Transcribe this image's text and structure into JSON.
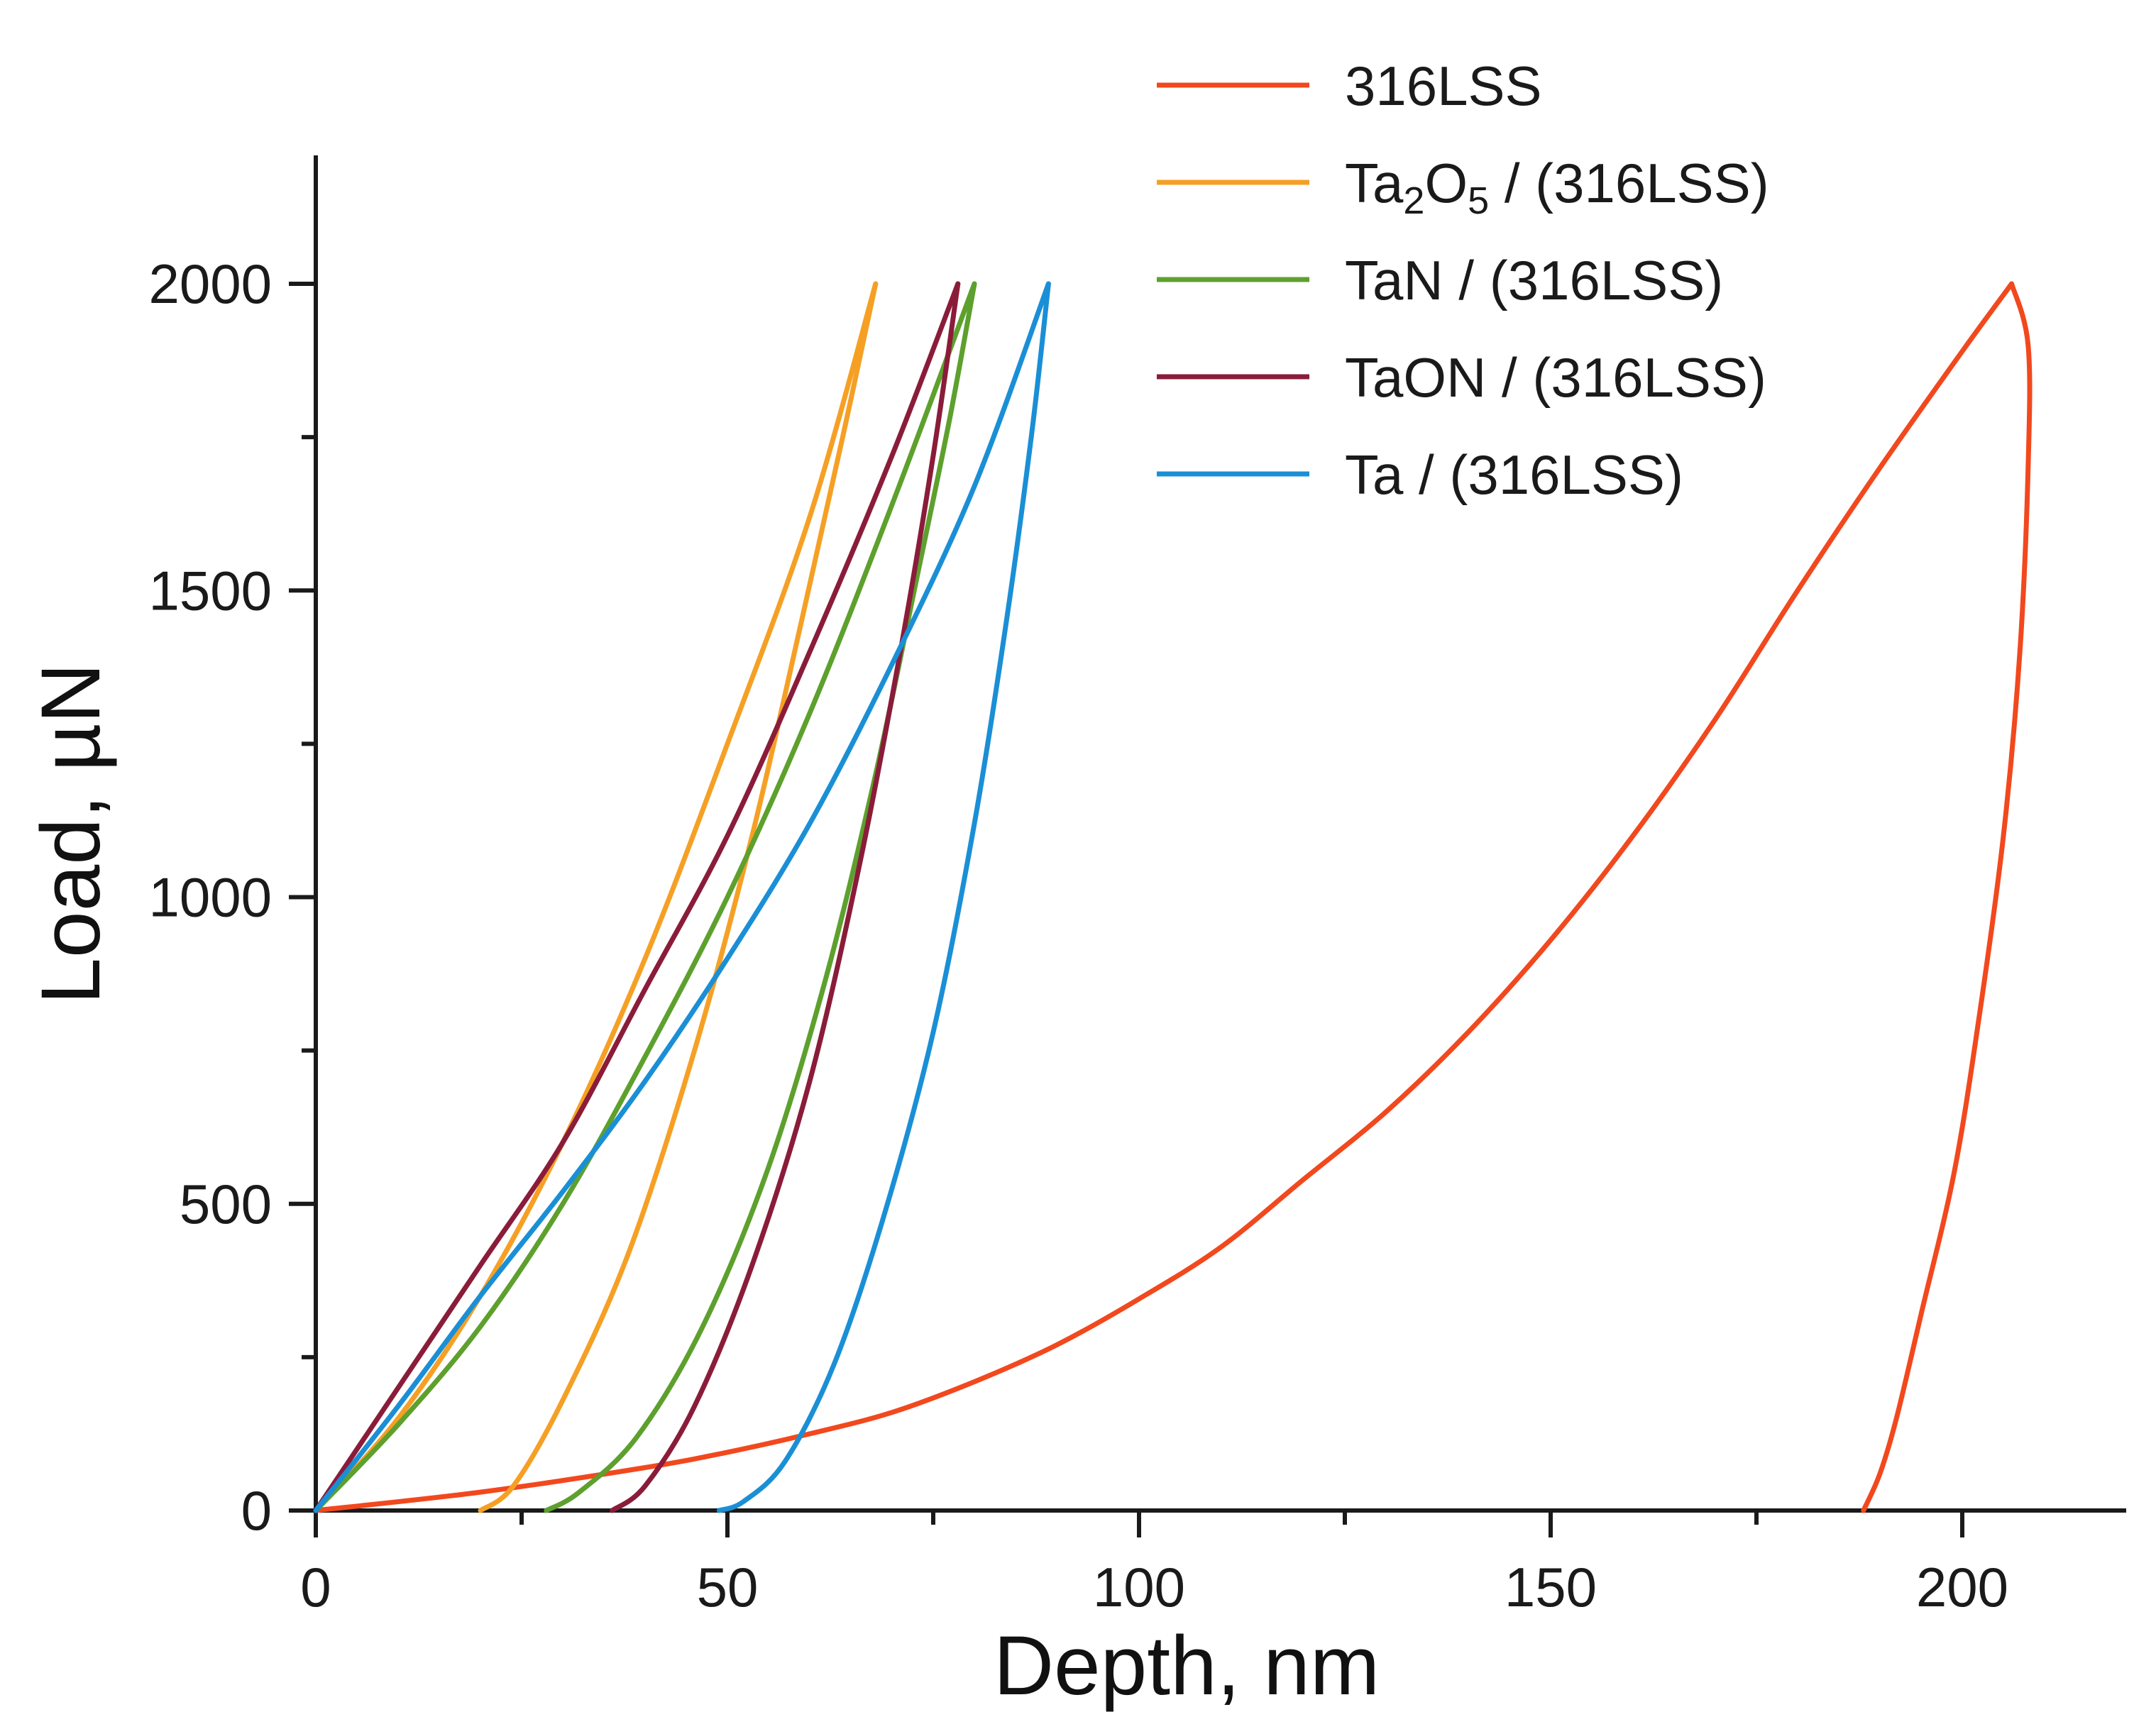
{
  "chart_data": {
    "type": "line",
    "title": "",
    "xlabel": "Depth, nm",
    "ylabel": "Load, µN",
    "xlim": [
      0,
      220
    ],
    "ylim": [
      0,
      2200
    ],
    "x_ticks": [
      0,
      50,
      100,
      150,
      200
    ],
    "x_tick_labels": [
      "0",
      "50",
      "100",
      "150",
      "200"
    ],
    "x_minor_ticks": [
      25,
      75,
      125,
      175
    ],
    "y_ticks": [
      0,
      500,
      1000,
      1500,
      2000
    ],
    "y_tick_labels": [
      "0",
      "500",
      "1000",
      "1500",
      "2000"
    ],
    "y_minor_ticks": [
      250,
      750,
      1250,
      1750
    ],
    "grid": false,
    "legend_position": "top-right",
    "series": [
      {
        "name": "316LSS",
        "legend_main": "316LSS",
        "legend_rest": "",
        "color": "#f2481e",
        "loading": {
          "x": [
            0,
            20,
            40,
            50,
            60,
            70,
            80,
            90,
            100,
            110,
            120,
            130,
            140,
            150,
            160,
            170,
            180,
            190,
            200,
            206
          ],
          "y": [
            0,
            30,
            70,
            95,
            125,
            160,
            210,
            270,
            345,
            430,
            540,
            650,
            780,
            930,
            1100,
            1290,
            1500,
            1700,
            1890,
            2000
          ]
        },
        "unloading": {
          "x": [
            206,
            208,
            208,
            207,
            205,
            202,
            199,
            195,
            192,
            190,
            188
          ],
          "y": [
            2000,
            1900,
            1700,
            1400,
            1100,
            800,
            550,
            320,
            150,
            60,
            0
          ]
        }
      },
      {
        "name": "Ta2O5 / (316LSS)",
        "legend_main": "Ta",
        "legend_sub1": "2",
        "legend_mid": "O",
        "legend_sub2": "5",
        "legend_rest": " / (316LSS)",
        "color": "#f5a025",
        "loading": {
          "x": [
            0,
            10,
            20,
            30,
            40,
            50,
            60,
            68
          ],
          "y": [
            0,
            150,
            350,
            600,
            900,
            1250,
            1620,
            2000
          ]
        },
        "unloading": {
          "x": [
            68,
            64,
            59,
            53,
            46,
            38,
            30,
            24,
            20
          ],
          "y": [
            2000,
            1750,
            1450,
            1100,
            750,
            420,
            180,
            40,
            0
          ]
        }
      },
      {
        "name": "TaN / (316LSS)",
        "legend_main": "TaN / (316LSS)",
        "legend_rest": "",
        "color": "#5da02d",
        "loading": {
          "x": [
            0,
            10,
            20,
            30,
            40,
            50,
            60,
            70,
            80
          ],
          "y": [
            0,
            140,
            300,
            500,
            740,
            1000,
            1300,
            1640,
            2000
          ]
        },
        "unloading": {
          "x": [
            80,
            77,
            73,
            68,
            62,
            55,
            47,
            39,
            32,
            28
          ],
          "y": [
            2000,
            1780,
            1520,
            1200,
            870,
            560,
            300,
            120,
            30,
            0
          ]
        }
      },
      {
        "name": "TaON / (316LSS)",
        "legend_main": "TaON / (316LSS)",
        "legend_rest": "",
        "color": "#8a1c3a",
        "loading": {
          "x": [
            0,
            10,
            20,
            30,
            40,
            50,
            60,
            70,
            78
          ],
          "y": [
            0,
            200,
            400,
            600,
            850,
            1100,
            1400,
            1720,
            2000
          ]
        },
        "unloading": {
          "x": [
            78,
            75,
            71,
            66,
            60,
            53,
            46,
            40,
            36
          ],
          "y": [
            2000,
            1720,
            1400,
            1050,
            700,
            400,
            170,
            40,
            0
          ]
        }
      },
      {
        "name": "Ta / (316LSS)",
        "legend_main": "Ta / (316LSS)",
        "legend_rest": "",
        "color": "#1a8fd6",
        "loading": {
          "x": [
            0,
            10,
            20,
            30,
            40,
            50,
            60,
            70,
            80,
            89
          ],
          "y": [
            0,
            170,
            350,
            520,
            700,
            900,
            1120,
            1380,
            1670,
            2000
          ]
        },
        "unloading": {
          "x": [
            89,
            87,
            84,
            80,
            75,
            69,
            63,
            57,
            52,
            49
          ],
          "y": [
            2000,
            1760,
            1460,
            1120,
            780,
            480,
            240,
            80,
            15,
            0
          ]
        }
      }
    ]
  }
}
